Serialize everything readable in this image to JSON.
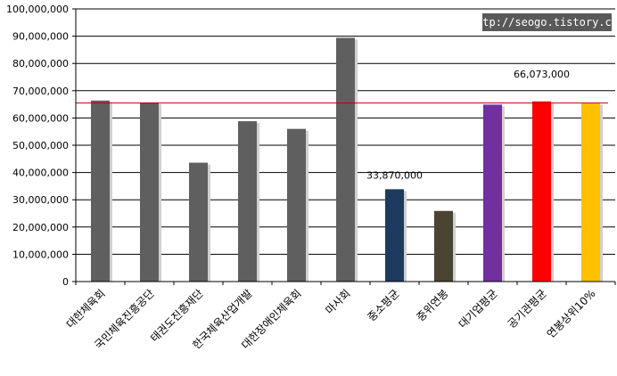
{
  "chart_data": {
    "type": "bar",
    "categories": [
      "대한체육회",
      "국민체육진흥공단",
      "태권도진흥재단",
      "한국체육산업개발",
      "대한장애인체육회",
      "마사회",
      "중소평균",
      "중위연봉",
      "대기업평균",
      "공기관평균",
      "연봉상위10%"
    ],
    "values": [
      66400000,
      65700000,
      43600000,
      58800000,
      56000000,
      89400000,
      33870000,
      25900000,
      64900000,
      66073000,
      65500000
    ],
    "colors": [
      "#5f5f5f",
      "#5f5f5f",
      "#5f5f5f",
      "#5f5f5f",
      "#5f5f5f",
      "#5f5f5f",
      "#1f3a5f",
      "#4a4430",
      "#7030a0",
      "#ff0000",
      "#ffc000"
    ],
    "ylim": [
      0,
      100000000
    ],
    "ytick_step": 10000000,
    "ytick_labels": [
      "0",
      "10,000,000",
      "20,000,000",
      "30,000,000",
      "40,000,000",
      "50,000,000",
      "60,000,000",
      "70,000,000",
      "80,000,000",
      "90,000,000",
      "100,000,000"
    ],
    "data_labels": [
      {
        "category_index": 6,
        "text": "33,870,000"
      },
      {
        "category_index": 9,
        "text": "66,073,000"
      }
    ],
    "reference_line": {
      "value": 65500000,
      "color": "#c00000"
    },
    "grid": true,
    "title": "",
    "xlabel": "",
    "ylabel": ""
  },
  "watermark": {
    "text": "http://seogo.tistory.com"
  }
}
